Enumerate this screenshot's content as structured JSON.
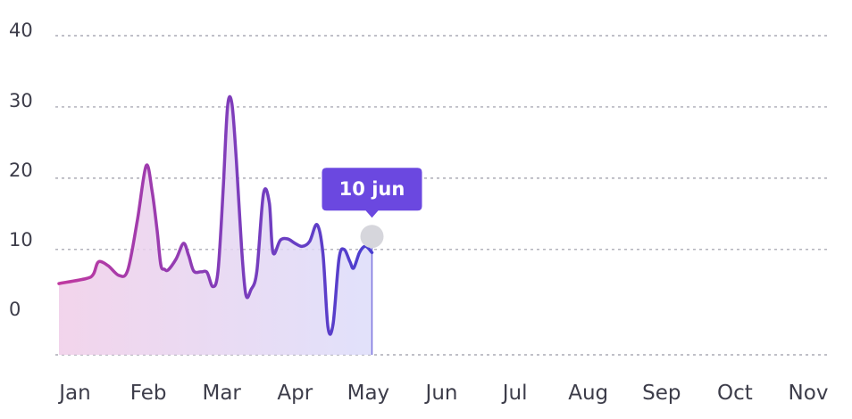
{
  "chart_data": {
    "type": "area",
    "x_axis_labels": [
      "Jan",
      "Feb",
      "Mar",
      "Apr",
      "May",
      "Jun",
      "Jul",
      "Aug",
      "Sep",
      "Oct",
      "Nov"
    ],
    "y_axis_labels": [
      "40",
      "30",
      "20",
      "10",
      "0"
    ],
    "series": [
      {
        "points": [
          [
            0.0,
            0
          ],
          [
            0.15,
            0.8
          ],
          [
            0.25,
            1.5
          ],
          [
            0.32,
            3.5
          ],
          [
            0.45,
            2.9
          ],
          [
            0.6,
            1.3
          ],
          [
            0.72,
            2.2
          ],
          [
            0.85,
            10.2
          ],
          [
            0.97,
            19.0
          ],
          [
            1.05,
            15.0
          ],
          [
            1.12,
            8.5
          ],
          [
            1.17,
            3.0
          ],
          [
            1.22,
            2.3
          ],
          [
            1.27,
            2.2
          ],
          [
            1.38,
            4.0
          ],
          [
            1.48,
            6.5
          ],
          [
            1.55,
            4.5
          ],
          [
            1.62,
            2.0
          ],
          [
            1.72,
            1.9
          ],
          [
            1.8,
            1.8
          ],
          [
            1.88,
            -0.5
          ],
          [
            1.95,
            2.0
          ],
          [
            2.02,
            15.0
          ],
          [
            2.08,
            28.5
          ],
          [
            2.14,
            29.0
          ],
          [
            2.2,
            20.0
          ],
          [
            2.27,
            6.0
          ],
          [
            2.33,
            -1.8
          ],
          [
            2.4,
            -1.0
          ],
          [
            2.48,
            2.0
          ],
          [
            2.57,
            14.5
          ],
          [
            2.65,
            13.0
          ],
          [
            2.7,
            5.0
          ],
          [
            2.8,
            7.0
          ],
          [
            2.9,
            7.2
          ],
          [
            3.0,
            6.5
          ],
          [
            3.1,
            6.0
          ],
          [
            3.2,
            6.8
          ],
          [
            3.3,
            9.5
          ],
          [
            3.38,
            5.0
          ],
          [
            3.45,
            -7.0
          ],
          [
            3.52,
            -6.5
          ],
          [
            3.6,
            4.0
          ],
          [
            3.67,
            5.5
          ],
          [
            3.75,
            3.5
          ],
          [
            3.8,
            2.5
          ],
          [
            3.88,
            5.0
          ],
          [
            3.96,
            6.0
          ],
          [
            4.05,
            5.0
          ]
        ]
      }
    ],
    "ylim": [
      -11.5,
      40
    ],
    "xlim": [
      0,
      10
    ],
    "grid": true,
    "tooltip": {
      "label": "10 jun",
      "x": 4.05,
      "y": 7.6
    },
    "colors": {
      "line_start": "#c03aa0",
      "line_end": "#4a3fd0",
      "fill_start": "#f0cde8",
      "fill_end": "#dcdcfa",
      "tooltip_bg": "#6b48e0",
      "marker": "#d6d6dc",
      "grid": "#9a9aa6",
      "text": "#3d3d4a"
    }
  }
}
